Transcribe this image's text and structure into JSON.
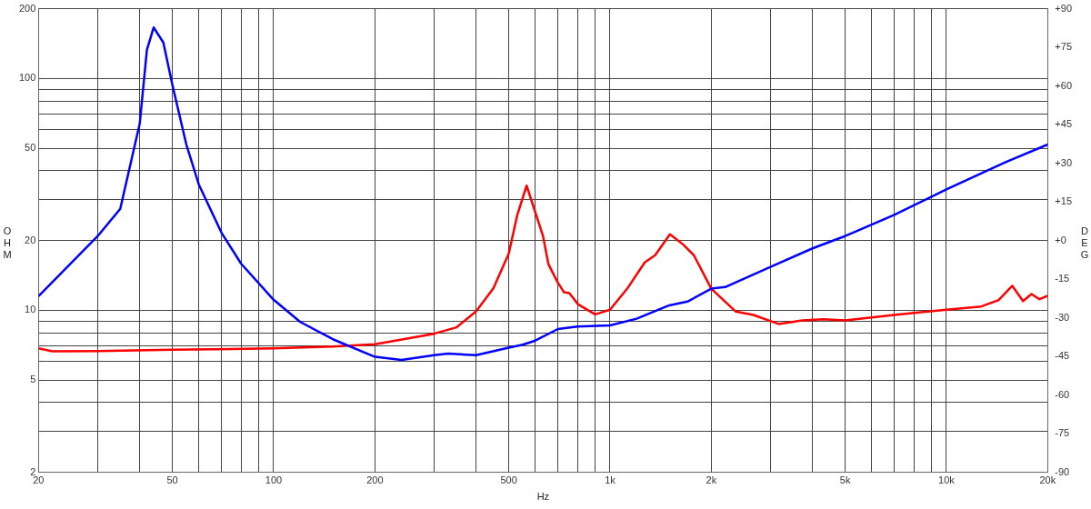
{
  "chart_data": {
    "type": "line",
    "xlabel": "Hz",
    "ylabel": "OHM",
    "y2label": "DEG",
    "log": "xy",
    "grid": true,
    "legend": false,
    "marker": "none",
    "line_style": "solid",
    "xlim": [
      20,
      20000
    ],
    "xticks": [
      20,
      {
        "value": 30,
        "label": null
      },
      {
        "value": 40,
        "label": null
      },
      50,
      {
        "value": 60,
        "label": null
      },
      {
        "value": 70,
        "label": null
      },
      {
        "value": 80,
        "label": null
      },
      {
        "value": 90,
        "label": null
      },
      100,
      200,
      {
        "value": 300,
        "label": null
      },
      {
        "value": 400,
        "label": null
      },
      500,
      {
        "value": 600,
        "label": null
      },
      {
        "value": 700,
        "label": null
      },
      {
        "value": 800,
        "label": null
      },
      {
        "value": 900,
        "label": null
      },
      {
        "value": 1000,
        "label": "1k"
      },
      {
        "value": 2000,
        "label": "2k"
      },
      {
        "value": 3000,
        "label": null
      },
      {
        "value": 4000,
        "label": null
      },
      {
        "value": 5000,
        "label": "5k"
      },
      {
        "value": 6000,
        "label": null
      },
      {
        "value": 7000,
        "label": null
      },
      {
        "value": 8000,
        "label": null
      },
      {
        "value": 9000,
        "label": null
      },
      {
        "value": 10000,
        "label": "10k"
      },
      {
        "value": 20000,
        "label": "20k"
      }
    ],
    "ylim": [
      2,
      200
    ],
    "yticks": [
      2,
      {
        "value": 3,
        "label": null
      },
      {
        "value": 4,
        "label": null
      },
      5,
      {
        "value": 6,
        "label": null
      },
      {
        "value": 7,
        "label": null
      },
      {
        "value": 8,
        "label": null
      },
      {
        "value": 9,
        "label": null
      },
      10,
      20,
      {
        "value": 30,
        "label": null
      },
      {
        "value": 40,
        "label": null
      },
      50,
      {
        "value": 60,
        "label": null
      },
      {
        "value": 70,
        "label": null
      },
      {
        "value": 80,
        "label": null
      },
      {
        "value": 90,
        "label": null
      },
      100,
      200
    ],
    "y2lim": [
      -90,
      90
    ],
    "y2ticks": [
      {
        "value": -90,
        "label": "-90"
      },
      {
        "value": -75,
        "label": "-75"
      },
      {
        "value": -60,
        "label": "-60"
      },
      {
        "value": -45,
        "label": "-45"
      },
      {
        "value": -30,
        "label": "-30"
      },
      {
        "value": -15,
        "label": "-15"
      },
      {
        "value": 0,
        "label": "+0"
      },
      {
        "value": 15,
        "label": "+15"
      },
      {
        "value": 30,
        "label": "+30"
      },
      {
        "value": 45,
        "label": "+45"
      },
      {
        "value": 60,
        "label": "+60"
      },
      {
        "value": 75,
        "label": "+75"
      },
      {
        "value": 90,
        "label": "+90"
      }
    ],
    "series": [
      {
        "color": "#0000ff",
        "x": [
          20,
          30,
          35,
          40,
          42,
          44,
          47,
          50,
          55,
          60,
          70,
          80,
          100,
          120,
          150,
          200,
          240,
          300,
          330,
          400,
          500,
          550,
          600,
          700,
          800,
          1000,
          1200,
          1500,
          1700,
          2000,
          2200,
          3000,
          4000,
          5000,
          7000,
          10000,
          15000,
          20000
        ],
        "values": [
          11.5,
          20.9,
          27.4,
          64,
          133,
          166,
          143,
          94,
          52,
          34.7,
          21.6,
          15.9,
          11.1,
          8.9,
          7.5,
          6.3,
          6.1,
          6.4,
          6.5,
          6.4,
          6.9,
          7.1,
          7.4,
          8.3,
          8.5,
          8.6,
          9.2,
          10.5,
          10.9,
          12.4,
          12.6,
          15.4,
          18.5,
          20.9,
          25.8,
          33.2,
          43.6,
          51.9
        ]
      },
      {
        "color": "#ff0000",
        "axis": "y2",
        "x": [
          20,
          22,
          30,
          50,
          100,
          150,
          200,
          300,
          350,
          400,
          450,
          500,
          530,
          565,
          632,
          656,
          697,
          730,
          757,
          804,
          903,
          1000,
          1125,
          1268,
          1362,
          1507,
          1651,
          1775,
          2000,
          2366,
          2668,
          3170,
          3730,
          4310,
          5000,
          7000,
          10000,
          12700,
          14300,
          15700,
          16900,
          17900,
          18900,
          20000
        ],
        "values": [
          -41.9,
          -43,
          -42.9,
          -42.4,
          -41.9,
          -41.2,
          -40.3,
          -36.2,
          -33.7,
          -27.5,
          -18.6,
          -5.1,
          9.9,
          21.3,
          1.8,
          -9.2,
          -16,
          -20.1,
          -20.4,
          -24.8,
          -28.7,
          -26.9,
          -18.7,
          -8.5,
          -5.7,
          2.4,
          -1.6,
          -5.7,
          -18.7,
          -27.6,
          -28.9,
          -32.4,
          -31,
          -30.6,
          -31,
          -28.9,
          -26.9,
          -25.6,
          -23.1,
          -17.6,
          -23.5,
          -20.8,
          -22.8,
          -21.5
        ]
      }
    ]
  }
}
